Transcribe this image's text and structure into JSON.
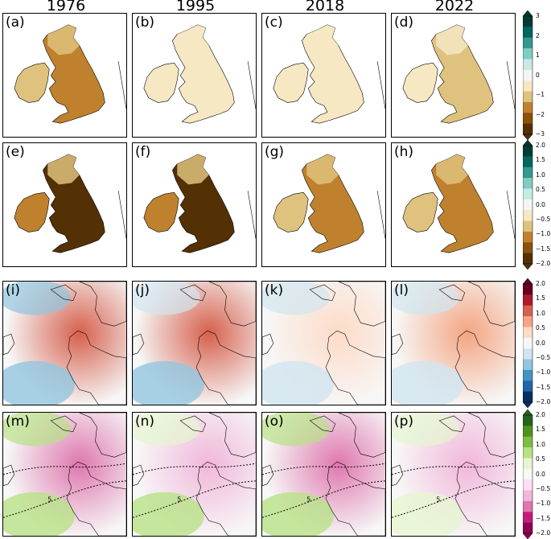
{
  "columns": [
    "1976",
    "1995",
    "2018",
    "2022"
  ],
  "panel_labels": [
    "(a)",
    "(b)",
    "(c)",
    "(d)",
    "(e)",
    "(f)",
    "(g)",
    "(h)",
    "(i)",
    "(j)",
    "(k)",
    "(l)",
    "(m)",
    "(n)",
    "(o)",
    "(p)"
  ],
  "contour_label": "5",
  "colors": {
    "brown_green": [
      "#543005",
      "#8c510a",
      "#bf812d",
      "#dfc27d",
      "#f6e8c3",
      "#f5f5f5",
      "#c7eae5",
      "#80cdc1",
      "#35978f",
      "#01665e",
      "#003c30"
    ],
    "red_blue": [
      "#053061",
      "#2166ac",
      "#4393c3",
      "#92c5de",
      "#d1e5f0",
      "#f7f7f7",
      "#fddbc7",
      "#f4a582",
      "#d6604d",
      "#b2182b",
      "#67001f"
    ],
    "pink_green": [
      "#8e0152",
      "#c51b7d",
      "#de77ae",
      "#f1b6da",
      "#fde0ef",
      "#f7f7f7",
      "#e6f5d0",
      "#b8e186",
      "#7fbc41",
      "#4d9221",
      "#276419"
    ]
  },
  "chart_data": [
    {
      "type": "heatmap",
      "row": 1,
      "panels": [
        "(a)",
        "(b)",
        "(c)",
        "(d)"
      ],
      "years": [
        "1976",
        "1995",
        "2018",
        "2022"
      ],
      "colormap": "brown-to-teal diverging",
      "colorbar": {
        "range": [
          -3,
          3
        ],
        "ticks": [
          "3",
          "2",
          "1",
          "0",
          "−1",
          "−2",
          "−3"
        ],
        "extend": "both"
      },
      "typical_value": [
        -1.8,
        -0.9,
        -0.7,
        -1.0
      ]
    },
    {
      "type": "heatmap",
      "row": 2,
      "panels": [
        "(e)",
        "(f)",
        "(g)",
        "(h)"
      ],
      "years": [
        "1976",
        "1995",
        "2018",
        "2022"
      ],
      "colormap": "brown-to-teal diverging",
      "colorbar": {
        "range": [
          -2,
          2
        ],
        "ticks": [
          "2.0",
          "1.5",
          "1.0",
          "0.5",
          "0.0",
          "−0.5",
          "−1.0",
          "−1.5",
          "−2.0"
        ],
        "extend": "both"
      },
      "typical_value": [
        -1.8,
        -1.8,
        -1.4,
        -1.3
      ]
    },
    {
      "type": "heatmap",
      "row": 3,
      "panels": [
        "(i)",
        "(j)",
        "(k)",
        "(l)"
      ],
      "years": [
        "1976",
        "1995",
        "2018",
        "2022"
      ],
      "colormap": "blue-to-red diverging",
      "colorbar": {
        "range": [
          -2,
          2
        ],
        "ticks": [
          "2.0",
          "1.5",
          "1.0",
          "0.5",
          "0.0",
          "−0.5",
          "−1.0",
          "−1.5",
          "−2.0"
        ],
        "extend": "both"
      },
      "typical_value": [
        1.3,
        1.0,
        0.5,
        0.8
      ]
    },
    {
      "type": "heatmap",
      "row": 4,
      "panels": [
        "(m)",
        "(n)",
        "(o)",
        "(p)"
      ],
      "years": [
        "1976",
        "1995",
        "2018",
        "2022"
      ],
      "colormap": "pink-to-green diverging",
      "colorbar": {
        "range": [
          -2,
          2
        ],
        "ticks": [
          "2.0",
          "1.5",
          "1.0",
          "0.5",
          "0.0",
          "−0.5",
          "−1.0",
          "−1.5",
          "−2.0"
        ],
        "extend": "both"
      },
      "contour_label": "5",
      "typical_value": [
        -1.2,
        -1.0,
        -1.3,
        -0.8
      ]
    }
  ]
}
